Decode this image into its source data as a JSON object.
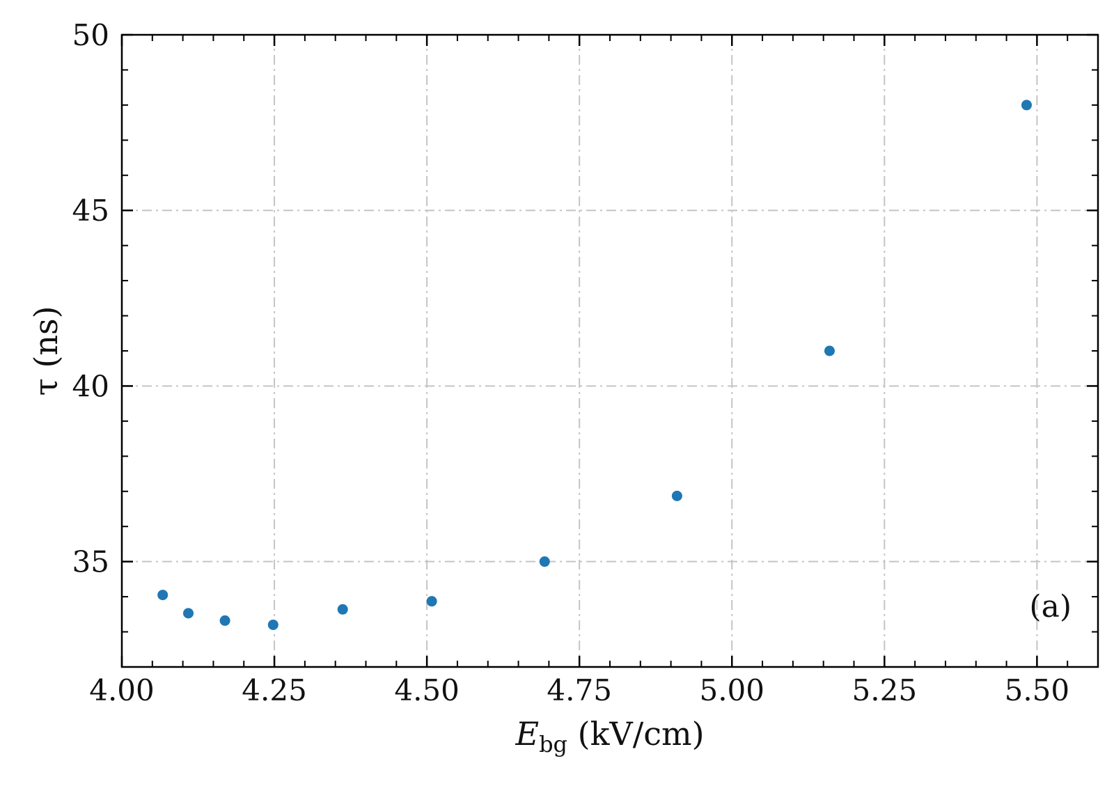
{
  "chart_data": {
    "type": "scatter",
    "xlabel_main": "E",
    "xlabel_sub": "bg",
    "xlabel_unit": " (kV/cm)",
    "ylabel": "τ (ns)",
    "annotation": "(a)",
    "xlim": [
      4.0,
      5.6
    ],
    "ylim": [
      32.0,
      50.0
    ],
    "x_ticks": [
      4.0,
      4.25,
      4.5,
      4.75,
      5.0,
      5.25,
      5.5
    ],
    "x_tick_labels": [
      "4.00",
      "4.25",
      "4.50",
      "4.75",
      "5.00",
      "5.25",
      "5.50"
    ],
    "y_ticks": [
      35,
      40,
      45,
      50
    ],
    "y_tick_labels": [
      "35",
      "40",
      "45",
      "50"
    ],
    "y_minor_step": 1,
    "x_minor_step": 0.05,
    "grid": true,
    "marker_color": "#1f77b4",
    "series": [
      {
        "x": [
          4.067,
          4.109,
          4.169,
          4.248,
          4.362,
          4.508,
          4.693,
          4.91,
          5.16,
          5.483
        ],
        "y": [
          34.05,
          33.53,
          33.32,
          33.2,
          33.64,
          33.87,
          35.0,
          36.87,
          41.0,
          48.0
        ]
      }
    ]
  }
}
